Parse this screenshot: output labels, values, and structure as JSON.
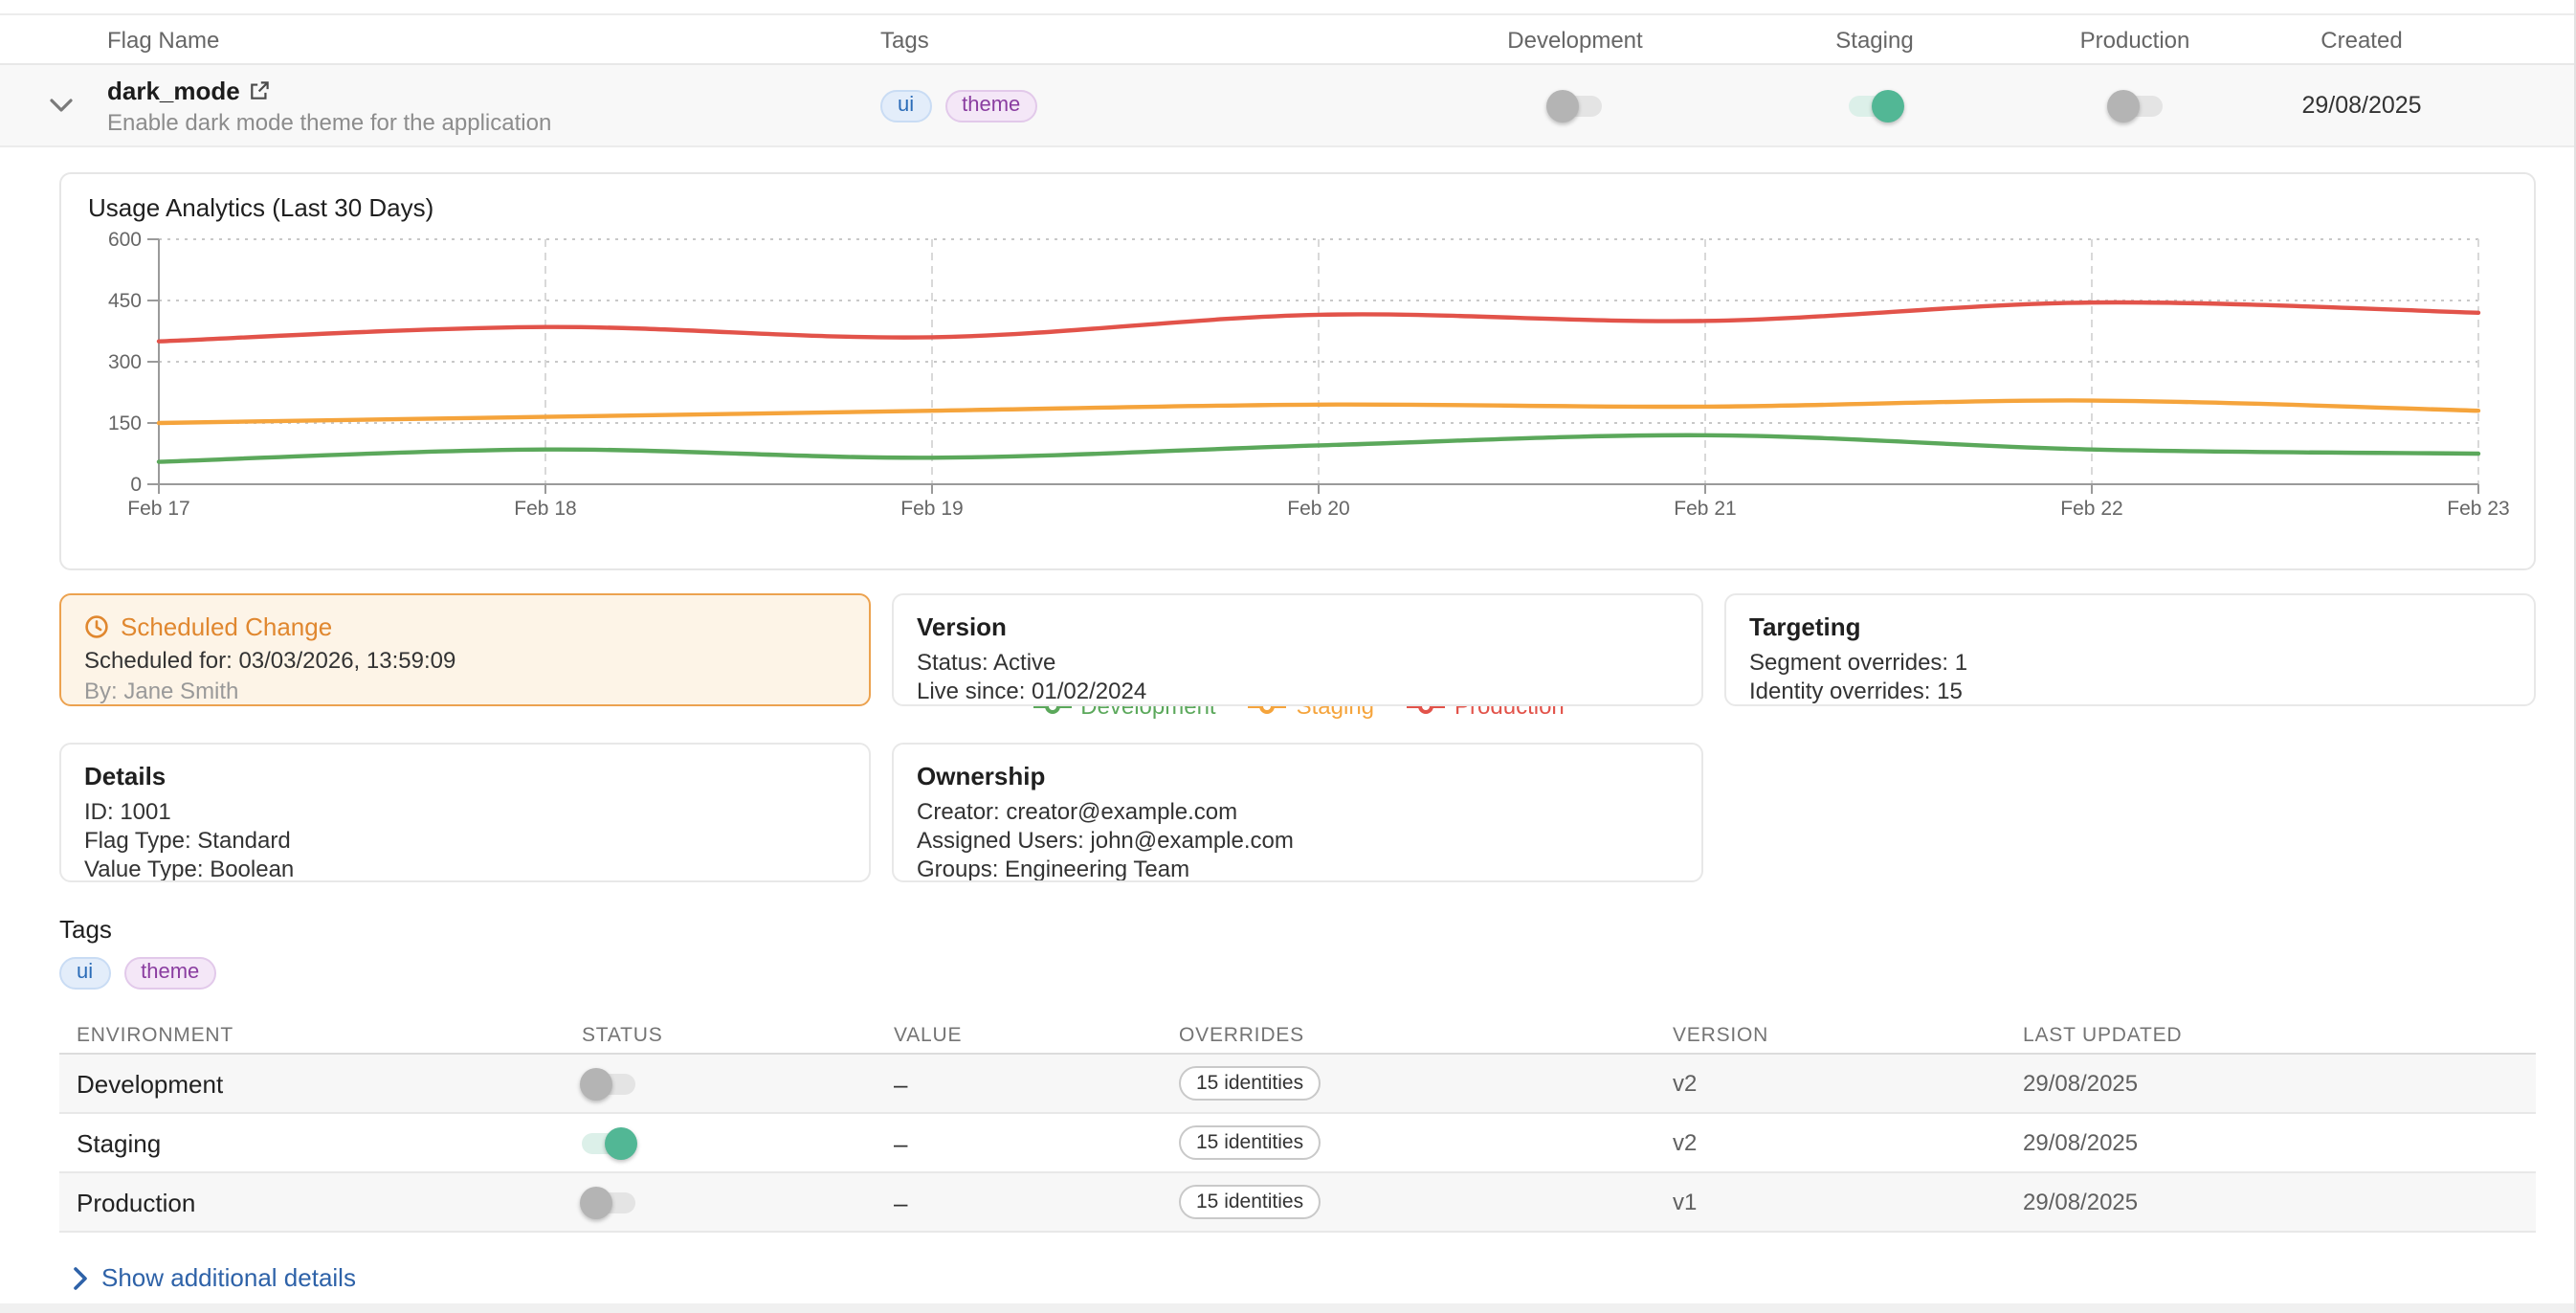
{
  "flag_table": {
    "columns": [
      "Flag Name",
      "Tags",
      "Development",
      "Staging",
      "Production",
      "Created"
    ],
    "flag": {
      "name": "dark_mode",
      "description": "Enable dark mode theme for the application",
      "tags": [
        {
          "label": "ui",
          "color": "blue"
        },
        {
          "label": "theme",
          "color": "purple"
        }
      ],
      "toggles": {
        "development": "off",
        "staging": "on",
        "production": "off"
      },
      "created": "29/08/2025"
    }
  },
  "chart_data": {
    "type": "line",
    "title": "Usage Analytics (Last 30 Days)",
    "x": [
      "Feb 17",
      "Feb 18",
      "Feb 19",
      "Feb 20",
      "Feb 21",
      "Feb 22",
      "Feb 23"
    ],
    "series": [
      {
        "name": "Development",
        "color": "#5BA85B",
        "values": [
          55,
          85,
          65,
          95,
          120,
          85,
          75
        ]
      },
      {
        "name": "Staging",
        "color": "#F5A43C",
        "values": [
          150,
          165,
          180,
          195,
          190,
          205,
          180
        ]
      },
      {
        "name": "Production",
        "color": "#E2534A",
        "values": [
          350,
          385,
          360,
          415,
          400,
          445,
          420
        ]
      }
    ],
    "ylim": [
      0,
      600
    ],
    "yticks": [
      0,
      150,
      300,
      450,
      600
    ],
    "grid": true,
    "legend_position": "bottom"
  },
  "cards": {
    "scheduled": {
      "title": "Scheduled Change",
      "scheduled_for": "Scheduled for: 03/03/2026, 13:59:09",
      "by": "By: Jane Smith"
    },
    "version": {
      "title": "Version",
      "lines": [
        "Status: Active",
        "Live since: 01/02/2024"
      ]
    },
    "targeting": {
      "title": "Targeting",
      "lines": [
        "Segment overrides: 1",
        "Identity overrides: 15"
      ]
    },
    "details": {
      "title": "Details",
      "lines": [
        "ID: 1001",
        "Flag Type: Standard",
        "Value Type: Boolean"
      ]
    },
    "ownership": {
      "title": "Ownership",
      "lines": [
        "Creator: creator@example.com",
        "Assigned Users: john@example.com",
        "Groups: Engineering Team"
      ]
    }
  },
  "tags_section": {
    "title": "Tags",
    "tags": [
      {
        "label": "ui",
        "color": "blue"
      },
      {
        "label": "theme",
        "color": "purple"
      }
    ]
  },
  "env_table": {
    "columns": [
      "ENVIRONMENT",
      "STATUS",
      "VALUE",
      "OVERRIDES",
      "VERSION",
      "LAST UPDATED"
    ],
    "rows": [
      {
        "environment": "Development",
        "status": "off",
        "value": "–",
        "overrides": "15 identities",
        "version": "v2",
        "last_updated": "29/08/2025"
      },
      {
        "environment": "Staging",
        "status": "on",
        "value": "–",
        "overrides": "15 identities",
        "version": "v2",
        "last_updated": "29/08/2025"
      },
      {
        "environment": "Production",
        "status": "off",
        "value": "–",
        "overrides": "15 identities",
        "version": "v1",
        "last_updated": "29/08/2025"
      }
    ]
  },
  "footer": {
    "show_details": "Show additional details"
  },
  "colors": {
    "toggle_on": "#52B795",
    "link": "#2E62A8",
    "scheduled_accent": "#E0872F",
    "row_stripe": "#F7F7F7"
  }
}
